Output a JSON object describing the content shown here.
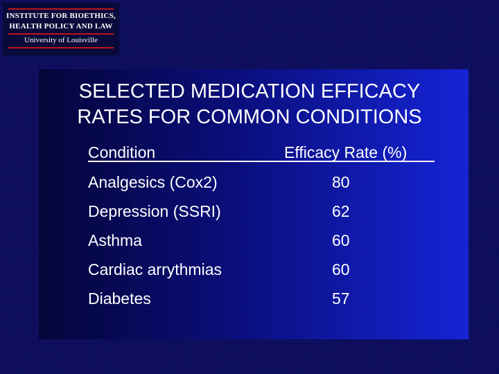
{
  "logo": {
    "line1": "INSTITUTE FOR BIOETHICS,",
    "line2": "HEALTH POLICY AND LAW",
    "line3": "University of Louisville"
  },
  "slide": {
    "title_line1": "SELECTED MEDICATION EFFICACY",
    "title_line2": "RATES FOR COMMON CONDITIONS"
  },
  "table": {
    "headers": {
      "condition": "Condition",
      "rate": "Efficacy Rate (%)"
    },
    "rows": [
      {
        "condition": "Analgesics (Cox2)",
        "rate": "80"
      },
      {
        "condition": "Depression (SSRI)",
        "rate": "62"
      },
      {
        "condition": "Asthma",
        "rate": "60"
      },
      {
        "condition": "Cardiac arrythmias",
        "rate": "60"
      },
      {
        "condition": "Diabetes",
        "rate": "57"
      }
    ]
  },
  "colors": {
    "background": "#0c0c5c",
    "panel_start": "#05053a",
    "panel_end": "#1524d6",
    "logo_rule": "#c0141e",
    "text": "#ffffff"
  }
}
